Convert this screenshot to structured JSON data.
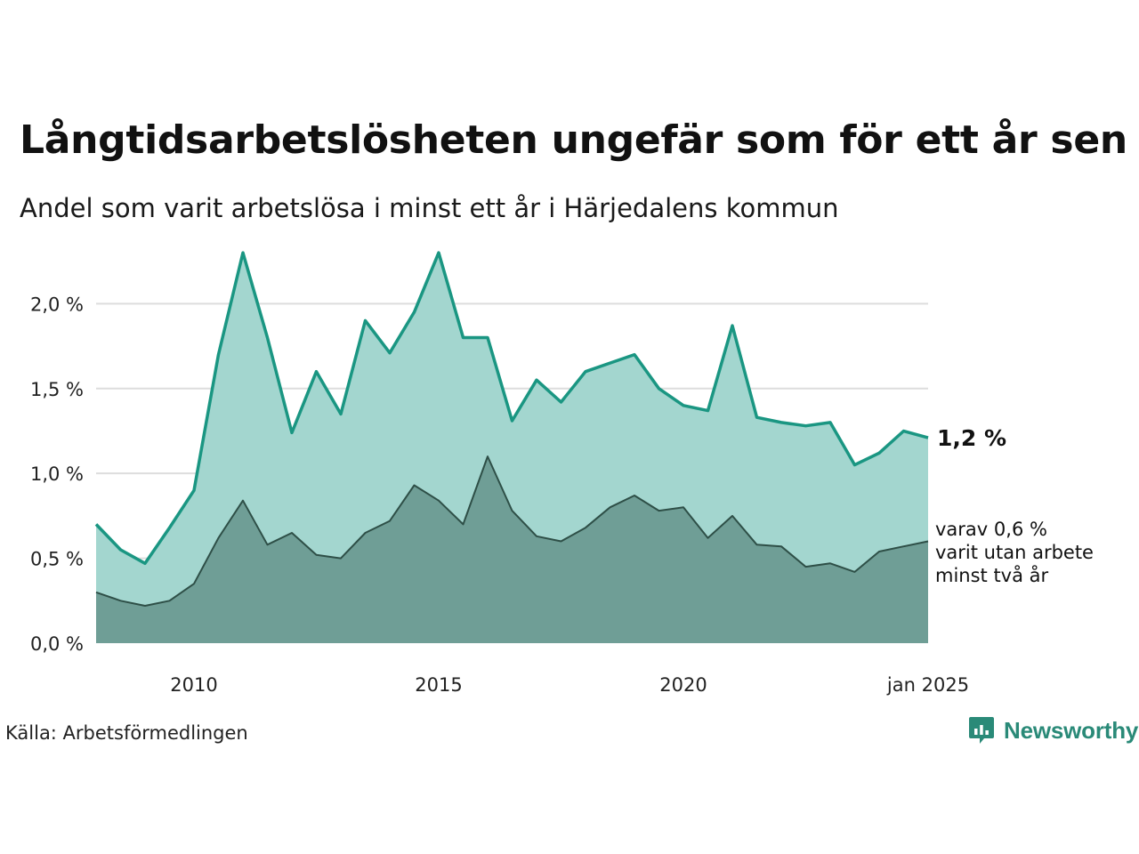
{
  "header": {
    "title": "Långtidsarbetslösheten ungefär som för ett år sen",
    "subtitle": "Andel som varit arbetslösa i minst ett år i Härjedalens kommun"
  },
  "footer": {
    "source": "Källa: Arbetsförmedlingen",
    "brand": "Newsworthy"
  },
  "colors": {
    "upper_line": "#1a9682",
    "upper_fill": "#a3d6cf",
    "lower_line": "#2e4f47",
    "lower_fill": "#6f9e96",
    "grid": "#dddddd",
    "brand": "#2a8a78"
  },
  "chart_data": {
    "type": "area",
    "x_unit": "year (decimal, monthly)",
    "xlim": [
      2008.0,
      2025.0
    ],
    "ylim": [
      0,
      2.4
    ],
    "y_ticks": [
      {
        "value": 0.0,
        "label": "0,0 %"
      },
      {
        "value": 0.5,
        "label": "0,5 %"
      },
      {
        "value": 1.0,
        "label": "1,0 %"
      },
      {
        "value": 1.5,
        "label": "1,5 %"
      },
      {
        "value": 2.0,
        "label": "2,0 %"
      }
    ],
    "x_ticks": [
      {
        "value": 2010,
        "label": "2010"
      },
      {
        "value": 2015,
        "label": "2015"
      },
      {
        "value": 2020,
        "label": "2020"
      },
      {
        "value": 2025,
        "label": "jan 2025"
      }
    ],
    "grid": "horizontal",
    "series": [
      {
        "key": "min_one_year",
        "x": [
          2008.0,
          2008.5,
          2009.0,
          2009.5,
          2010.0,
          2010.5,
          2011.0,
          2011.5,
          2012.0,
          2012.5,
          2013.0,
          2013.5,
          2014.0,
          2014.5,
          2015.0,
          2015.5,
          2016.0,
          2016.5,
          2017.0,
          2017.5,
          2018.0,
          2018.5,
          2019.0,
          2019.5,
          2020.0,
          2020.5,
          2021.0,
          2021.5,
          2022.0,
          2022.5,
          2023.0,
          2023.5,
          2024.0,
          2024.5,
          2025.0
        ],
        "values": [
          0.7,
          0.55,
          0.47,
          0.68,
          0.9,
          1.7,
          2.3,
          1.8,
          1.24,
          1.6,
          1.35,
          1.9,
          1.71,
          1.95,
          2.3,
          1.8,
          1.8,
          1.31,
          1.55,
          1.42,
          1.6,
          1.65,
          1.7,
          1.5,
          1.4,
          1.37,
          1.87,
          1.33,
          1.3,
          1.28,
          1.3,
          1.05,
          1.12,
          1.25,
          1.21
        ],
        "end_label": "1,2 %"
      },
      {
        "key": "min_two_years",
        "x": [
          2008.0,
          2008.5,
          2009.0,
          2009.5,
          2010.0,
          2010.5,
          2011.0,
          2011.5,
          2012.0,
          2012.5,
          2013.0,
          2013.5,
          2014.0,
          2014.5,
          2015.0,
          2015.5,
          2016.0,
          2016.5,
          2017.0,
          2017.5,
          2018.0,
          2018.5,
          2019.0,
          2019.5,
          2020.0,
          2020.5,
          2021.0,
          2021.5,
          2022.0,
          2022.5,
          2023.0,
          2023.5,
          2024.0,
          2024.5,
          2025.0
        ],
        "values": [
          0.3,
          0.25,
          0.22,
          0.25,
          0.35,
          0.62,
          0.84,
          0.58,
          0.65,
          0.52,
          0.5,
          0.65,
          0.72,
          0.93,
          0.84,
          0.7,
          1.1,
          0.78,
          0.63,
          0.6,
          0.68,
          0.8,
          0.87,
          0.78,
          0.8,
          0.62,
          0.75,
          0.58,
          0.57,
          0.45,
          0.47,
          0.42,
          0.54,
          0.57,
          0.6
        ],
        "note_lines": [
          "varav 0,6 %",
          "varit utan arbete",
          "minst två år"
        ]
      }
    ]
  }
}
